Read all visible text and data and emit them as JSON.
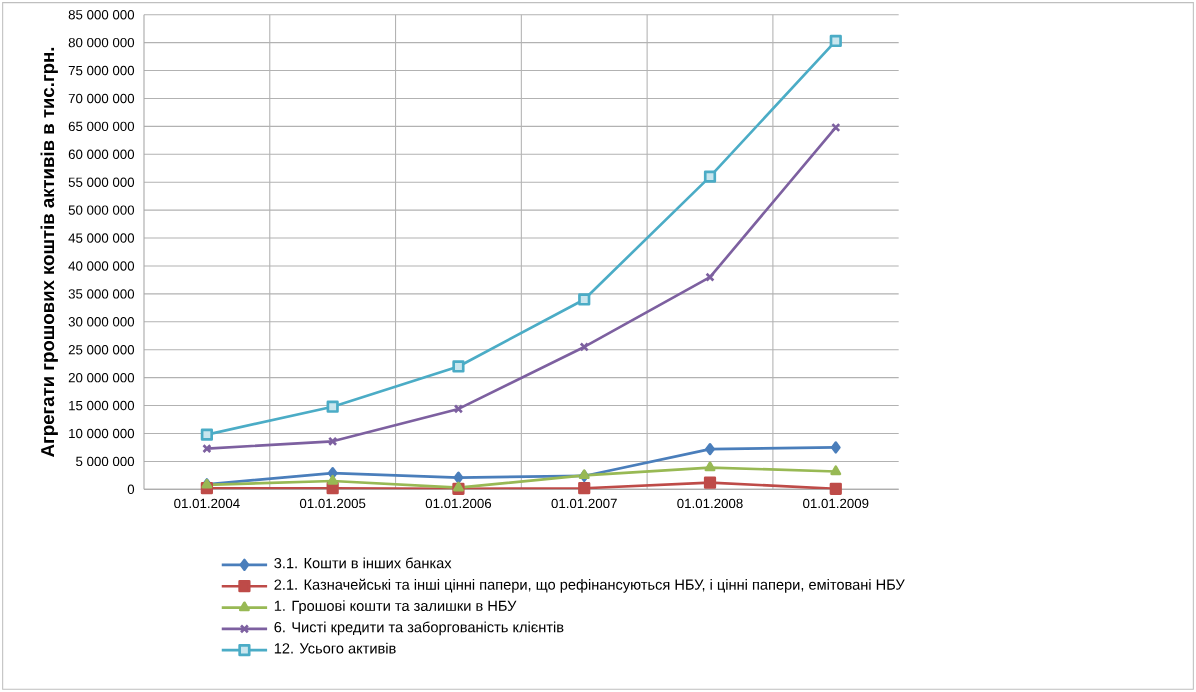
{
  "chart_data": {
    "type": "line",
    "ylabel": "Агрегати грошових коштів активів в тис.грн.",
    "categories": [
      "01.01.2004",
      "01.01.2005",
      "01.01.2006",
      "01.01.2007",
      "01.01.2008",
      "01.01.2009"
    ],
    "series": [
      {
        "name": "3.1. Кошти в інших банках",
        "color": "#4a7ebb",
        "marker": "diamond",
        "values": [
          900000,
          2900000,
          2100000,
          2400000,
          7200000,
          7500000
        ]
      },
      {
        "name": "2.1. Казначейські та інші цінні папери, що рефінансуються НБУ, і цінні папери, емітовані НБУ",
        "color": "#be4b48",
        "marker": "square",
        "values": [
          200000,
          200000,
          100000,
          200000,
          1200000,
          100000
        ]
      },
      {
        "name": "1. Грошові кошти та залишки в НБУ",
        "color": "#98b954",
        "marker": "triangle",
        "values": [
          800000,
          1500000,
          300000,
          2500000,
          3900000,
          3200000
        ]
      },
      {
        "name": "6. Чисті кредити та заборгованість клієнтів",
        "color": "#7d60a0",
        "marker": "cross",
        "values": [
          7300000,
          8600000,
          14400000,
          25500000,
          38000000,
          64800000
        ]
      },
      {
        "name": "12. Усього активів",
        "color": "#4bacc6",
        "marker": "square",
        "values": [
          9800000,
          14800000,
          22000000,
          34000000,
          56000000,
          80300000
        ]
      }
    ],
    "ylim": [
      0,
      85000000
    ],
    "yticks": [
      {
        "value": 0,
        "label": "0"
      },
      {
        "value": 5000000,
        "label": "5 000 000"
      },
      {
        "value": 10000000,
        "label": "10 000 000"
      },
      {
        "value": 15000000,
        "label": "15 000 000"
      },
      {
        "value": 20000000,
        "label": "20 000 000"
      },
      {
        "value": 25000000,
        "label": "25 000 000"
      },
      {
        "value": 30000000,
        "label": "30 000 000"
      },
      {
        "value": 35000000,
        "label": "35 000 000"
      },
      {
        "value": 40000000,
        "label": "40 000 000"
      },
      {
        "value": 45000000,
        "label": "45 000 000"
      },
      {
        "value": 50000000,
        "label": "50 000 000"
      },
      {
        "value": 55000000,
        "label": "55 000 000"
      },
      {
        "value": 60000000,
        "label": "60 000 000"
      },
      {
        "value": 65000000,
        "label": "65 000 000"
      },
      {
        "value": 70000000,
        "label": "70 000 000"
      },
      {
        "value": 75000000,
        "label": "75 000 000"
      },
      {
        "value": 80000000,
        "label": "80 000 000"
      },
      {
        "value": 85000000,
        "label": "85 000 000"
      }
    ],
    "grid": true,
    "legend": "bottom",
    "line_style": "solid"
  }
}
